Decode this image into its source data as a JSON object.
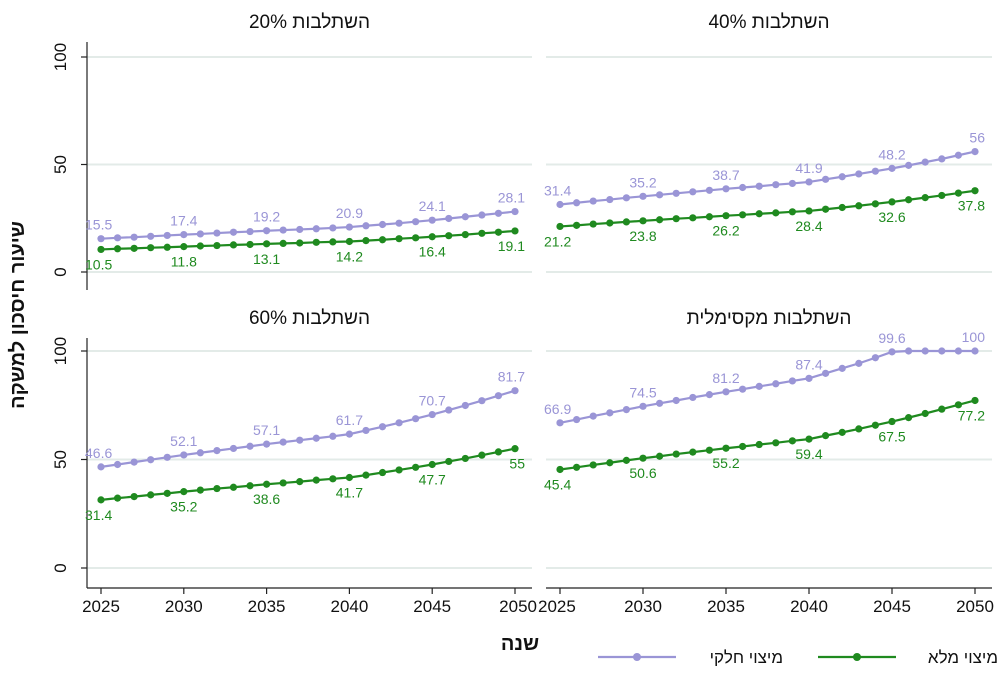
{
  "chart_data": {
    "type": "line",
    "y_axis_label": "שיעור חיסכון למשקה",
    "x_axis_label": "שנה",
    "x_ticks": [
      "2025",
      "2030",
      "2035",
      "2040",
      "2045",
      "2050"
    ],
    "y_ticks": [
      "0",
      "50",
      "100"
    ],
    "xlim": [
      2025,
      2050
    ],
    "ylim": [
      0,
      100
    ],
    "grid": "horizontal",
    "legend_position": "bottom",
    "colors": {
      "partial": "#9a95d6",
      "full": "#1f8a1f"
    },
    "legend": [
      {
        "key": "partial",
        "label": "מיצוי חלקי"
      },
      {
        "key": "full",
        "label": "מיצוי מלא"
      }
    ],
    "panels": [
      {
        "title": "השתלבות 20%",
        "partial": [
          15.5,
          15.9,
          16.2,
          16.6,
          17.0,
          17.4,
          17.7,
          18.1,
          18.5,
          18.8,
          19.2,
          19.5,
          19.8,
          20.1,
          20.5,
          20.9,
          21.5,
          22.1,
          22.7,
          23.4,
          24.1,
          24.9,
          25.7,
          26.5,
          27.3,
          28.1
        ],
        "full": [
          10.5,
          10.8,
          11.0,
          11.3,
          11.5,
          11.8,
          12.1,
          12.3,
          12.6,
          12.8,
          13.1,
          13.3,
          13.5,
          13.8,
          14.0,
          14.2,
          14.6,
          15.0,
          15.5,
          15.9,
          16.4,
          16.9,
          17.4,
          18.0,
          18.5,
          19.1
        ],
        "partial_labels": [
          {
            "year": 2025,
            "text": "15.5"
          },
          {
            "year": 2030,
            "text": "17.4"
          },
          {
            "year": 2035,
            "text": "19.2"
          },
          {
            "year": 2040,
            "text": "20.9"
          },
          {
            "year": 2045,
            "text": "24.1"
          },
          {
            "year": 2050,
            "text": "28.1"
          }
        ],
        "full_labels": [
          {
            "year": 2025,
            "text": "10.5"
          },
          {
            "year": 2030,
            "text": "11.8"
          },
          {
            "year": 2035,
            "text": "13.1"
          },
          {
            "year": 2040,
            "text": "14.2"
          },
          {
            "year": 2045,
            "text": "16.4"
          },
          {
            "year": 2050,
            "text": "19.1"
          }
        ]
      },
      {
        "title": "השתלבות 40%",
        "partial": [
          31.4,
          32.2,
          33.0,
          33.7,
          34.5,
          35.2,
          35.9,
          36.6,
          37.3,
          38.0,
          38.7,
          39.3,
          39.9,
          40.6,
          41.2,
          41.9,
          43.1,
          44.3,
          45.6,
          46.9,
          48.2,
          49.6,
          51.1,
          52.6,
          54.3,
          56.0
        ],
        "full": [
          21.2,
          21.7,
          22.3,
          22.8,
          23.3,
          23.8,
          24.3,
          24.8,
          25.2,
          25.7,
          26.2,
          26.6,
          27.1,
          27.5,
          28.0,
          28.4,
          29.2,
          30.0,
          30.8,
          31.7,
          32.6,
          33.6,
          34.6,
          35.6,
          36.7,
          37.8
        ],
        "partial_labels": [
          {
            "year": 2025,
            "text": "31.4"
          },
          {
            "year": 2030,
            "text": "35.2"
          },
          {
            "year": 2035,
            "text": "38.7"
          },
          {
            "year": 2040,
            "text": "41.9"
          },
          {
            "year": 2045,
            "text": "48.2"
          },
          {
            "year": 2050,
            "text": "56"
          }
        ],
        "full_labels": [
          {
            "year": 2025,
            "text": "21.2"
          },
          {
            "year": 2030,
            "text": "23.8"
          },
          {
            "year": 2035,
            "text": "26.2"
          },
          {
            "year": 2040,
            "text": "28.4"
          },
          {
            "year": 2045,
            "text": "32.6"
          },
          {
            "year": 2050,
            "text": "37.8"
          }
        ]
      },
      {
        "title": "השתלבות 60%",
        "partial": [
          46.6,
          47.7,
          48.8,
          49.9,
          51.0,
          52.1,
          53.1,
          54.1,
          55.1,
          56.1,
          57.1,
          58.0,
          58.9,
          59.8,
          60.7,
          61.7,
          63.4,
          65.1,
          66.9,
          68.8,
          70.7,
          72.8,
          74.9,
          77.1,
          79.4,
          81.7
        ],
        "full": [
          31.4,
          32.2,
          32.9,
          33.7,
          34.4,
          35.2,
          35.9,
          36.6,
          37.2,
          37.9,
          38.6,
          39.2,
          39.8,
          40.5,
          41.1,
          41.7,
          42.8,
          44.0,
          45.2,
          46.4,
          47.7,
          49.1,
          50.5,
          52.0,
          53.5,
          55.0
        ],
        "partial_labels": [
          {
            "year": 2025,
            "text": "46.6"
          },
          {
            "year": 2030,
            "text": "52.1"
          },
          {
            "year": 2035,
            "text": "57.1"
          },
          {
            "year": 2040,
            "text": "61.7"
          },
          {
            "year": 2045,
            "text": "70.7"
          },
          {
            "year": 2050,
            "text": "81.7"
          }
        ],
        "full_labels": [
          {
            "year": 2025,
            "text": "31.4"
          },
          {
            "year": 2030,
            "text": "35.2"
          },
          {
            "year": 2035,
            "text": "38.6"
          },
          {
            "year": 2040,
            "text": "41.7"
          },
          {
            "year": 2045,
            "text": "47.7"
          },
          {
            "year": 2050,
            "text": "55"
          }
        ]
      },
      {
        "title": "השתלבות מקסימלית",
        "partial": [
          66.9,
          68.4,
          70.0,
          71.5,
          73.0,
          74.5,
          75.9,
          77.2,
          78.6,
          79.9,
          81.2,
          82.4,
          83.7,
          84.9,
          86.2,
          87.4,
          89.7,
          92.0,
          94.3,
          96.9,
          99.6,
          100,
          100,
          100,
          100,
          100
        ],
        "full": [
          45.4,
          46.4,
          47.5,
          48.5,
          49.6,
          50.6,
          51.5,
          52.5,
          53.4,
          54.3,
          55.2,
          56.0,
          56.9,
          57.7,
          58.6,
          59.4,
          61.0,
          62.5,
          64.1,
          65.8,
          67.5,
          69.3,
          71.2,
          73.2,
          75.2,
          77.2
        ],
        "partial_labels": [
          {
            "year": 2025,
            "text": "66.9"
          },
          {
            "year": 2030,
            "text": "74.5"
          },
          {
            "year": 2035,
            "text": "81.2"
          },
          {
            "year": 2040,
            "text": "87.4"
          },
          {
            "year": 2045,
            "text": "99.6"
          },
          {
            "year": 2050,
            "text": "100"
          }
        ],
        "full_labels": [
          {
            "year": 2025,
            "text": "45.4"
          },
          {
            "year": 2030,
            "text": "50.6"
          },
          {
            "year": 2035,
            "text": "55.2"
          },
          {
            "year": 2040,
            "text": "59.4"
          },
          {
            "year": 2045,
            "text": "67.5"
          },
          {
            "year": 2050,
            "text": "77.2"
          }
        ]
      }
    ]
  }
}
